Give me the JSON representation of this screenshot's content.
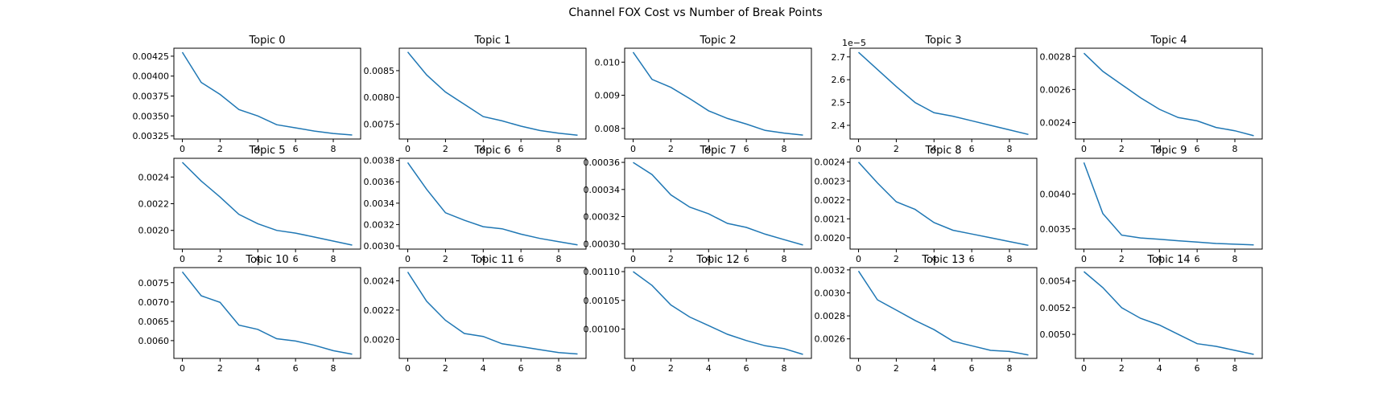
{
  "chart_data": {
    "type": "line",
    "title": "Channel FOX Cost vs Number of Break Points",
    "x": [
      0,
      1,
      2,
      3,
      4,
      5,
      6,
      7,
      8,
      9
    ],
    "xticks": [
      "0",
      "2",
      "4",
      "6",
      "8"
    ],
    "grid": false,
    "series_color": "#1f77b4",
    "panels": [
      {
        "title": "Topic 0",
        "values": [
          0.0043,
          0.00392,
          0.00377,
          0.00358,
          0.0035,
          0.00339,
          0.00335,
          0.00331,
          0.00328,
          0.00326
        ],
        "ylim": [
          0.00321,
          0.00435
        ],
        "yticks": [
          0.00325,
          0.0035,
          0.00375,
          0.004,
          0.00425
        ],
        "yticklabels": [
          "0.00325",
          "0.00350",
          "0.00375",
          "0.00400",
          "0.00425"
        ]
      },
      {
        "title": "Topic 1",
        "values": [
          0.00885,
          0.00842,
          0.0081,
          0.00787,
          0.00764,
          0.00756,
          0.00746,
          0.00738,
          0.00733,
          0.00729
        ],
        "ylim": [
          0.00722,
          0.00892
        ],
        "yticks": [
          0.0075,
          0.008,
          0.0085
        ],
        "yticklabels": [
          "0.0075",
          "0.0080",
          "0.0085"
        ]
      },
      {
        "title": "Topic 2",
        "values": [
          0.0103,
          0.00948,
          0.00924,
          0.0089,
          0.00853,
          0.0083,
          0.00813,
          0.00794,
          0.00786,
          0.0078
        ],
        "ylim": [
          0.00768,
          0.01042
        ],
        "yticks": [
          0.008,
          0.009,
          0.01
        ],
        "yticklabels": [
          "0.008",
          "0.009",
          "0.010"
        ]
      },
      {
        "title": "Topic 3",
        "values": [
          2.72e-05,
          2.645e-05,
          2.57e-05,
          2.5e-05,
          2.455e-05,
          2.44e-05,
          2.42e-05,
          2.4e-05,
          2.38e-05,
          2.36e-05
        ],
        "ylim": [
          2.34e-05,
          2.738e-05
        ],
        "yticks": [
          2.4e-05,
          2.5e-05,
          2.6e-05,
          2.7e-05
        ],
        "yticklabels": [
          "2.4",
          "2.5",
          "2.6",
          "2.7"
        ],
        "offset_label": "1e−5"
      },
      {
        "title": "Topic 4",
        "values": [
          0.00282,
          0.00271,
          0.00263,
          0.00255,
          0.00248,
          0.00243,
          0.00241,
          0.00237,
          0.00235,
          0.00232
        ],
        "ylim": [
          0.0023,
          0.00285
        ],
        "yticks": [
          0.0024,
          0.0026,
          0.0028
        ],
        "yticklabels": [
          "0.0024",
          "0.0026",
          "0.0028"
        ]
      },
      {
        "title": "Topic 5",
        "values": [
          0.00251,
          0.00237,
          0.00225,
          0.00212,
          0.00205,
          0.002,
          0.00198,
          0.00195,
          0.00192,
          0.00189
        ],
        "ylim": [
          0.00186,
          0.00254
        ],
        "yticks": [
          0.002,
          0.0022,
          0.0024
        ],
        "yticklabels": [
          "0.0020",
          "0.0022",
          "0.0024"
        ]
      },
      {
        "title": "Topic 6",
        "values": [
          0.00378,
          0.00353,
          0.00331,
          0.00324,
          0.00318,
          0.00316,
          0.00311,
          0.00307,
          0.00304,
          0.00301
        ],
        "ylim": [
          0.00297,
          0.00382
        ],
        "yticks": [
          0.003,
          0.0032,
          0.0034,
          0.0036,
          0.0038
        ],
        "yticklabels": [
          "0.0030",
          "0.0032",
          "0.0034",
          "0.0036",
          "0.0038"
        ]
      },
      {
        "title": "Topic 7",
        "values": [
          0.00036,
          0.000351,
          0.000336,
          0.000327,
          0.000322,
          0.000315,
          0.000312,
          0.000307,
          0.000303,
          0.000299
        ],
        "ylim": [
          0.000296,
          0.000363
        ],
        "yticks": [
          0.0003,
          0.00032,
          0.00034,
          0.00036
        ],
        "yticklabels": [
          "0.00030",
          "0.00032",
          "0.00034",
          "0.00036"
        ]
      },
      {
        "title": "Topic 8",
        "values": [
          0.0024,
          0.00229,
          0.00219,
          0.00215,
          0.00208,
          0.00204,
          0.00202,
          0.002,
          0.00198,
          0.00196
        ],
        "ylim": [
          0.00194,
          0.00242
        ],
        "yticks": [
          0.002,
          0.0021,
          0.0022,
          0.0023,
          0.0024
        ],
        "yticklabels": [
          "0.0020",
          "0.0021",
          "0.0022",
          "0.0023",
          "0.0024"
        ]
      },
      {
        "title": "Topic 9",
        "values": [
          0.00445,
          0.00372,
          0.00341,
          0.00337,
          0.00335,
          0.00333,
          0.00331,
          0.00329,
          0.00328,
          0.00327
        ],
        "ylim": [
          0.00321,
          0.00451
        ],
        "yticks": [
          0.0035,
          0.004
        ],
        "yticklabels": [
          "0.0035",
          "0.0040"
        ]
      },
      {
        "title": "Topic 10",
        "values": [
          0.00778,
          0.00716,
          0.00699,
          0.0064,
          0.00629,
          0.00605,
          0.00599,
          0.00588,
          0.00574,
          0.00565
        ],
        "ylim": [
          0.00554,
          0.00789
        ],
        "yticks": [
          0.006,
          0.0065,
          0.007,
          0.0075
        ],
        "yticklabels": [
          "0.0060",
          "0.0065",
          "0.0070",
          "0.0075"
        ]
      },
      {
        "title": "Topic 11",
        "values": [
          0.00246,
          0.00226,
          0.00213,
          0.00204,
          0.00202,
          0.00197,
          0.00195,
          0.00193,
          0.00191,
          0.0019
        ],
        "ylim": [
          0.00187,
          0.00249
        ],
        "yticks": [
          0.002,
          0.0022,
          0.0024
        ],
        "yticklabels": [
          "0.0020",
          "0.0022",
          "0.0024"
        ]
      },
      {
        "title": "Topic 12",
        "values": [
          0.0011,
          0.001076,
          0.001042,
          0.001021,
          0.001006,
          0.000991,
          0.00098,
          0.000971,
          0.000966,
          0.000956
        ],
        "ylim": [
          0.000949,
          0.001107
        ],
        "yticks": [
          0.001,
          0.00105,
          0.0011
        ],
        "yticklabels": [
          "0.00100",
          "0.00105",
          "0.00110"
        ]
      },
      {
        "title": "Topic 13",
        "values": [
          0.00319,
          0.00294,
          0.00285,
          0.00276,
          0.00268,
          0.00258,
          0.00254,
          0.0025,
          0.00249,
          0.00246
        ],
        "ylim": [
          0.00243,
          0.00322
        ],
        "yticks": [
          0.0026,
          0.0028,
          0.003,
          0.0032
        ],
        "yticklabels": [
          "0.0026",
          "0.0028",
          "0.0030",
          "0.0032"
        ]
      },
      {
        "title": "Topic 14",
        "values": [
          0.00547,
          0.00535,
          0.0052,
          0.00512,
          0.00507,
          0.005,
          0.00493,
          0.00491,
          0.00488,
          0.00485
        ],
        "ylim": [
          0.00482,
          0.0055
        ],
        "yticks": [
          0.005,
          0.0052,
          0.0054
        ],
        "yticklabels": [
          "0.0050",
          "0.0052",
          "0.0054"
        ]
      }
    ]
  }
}
